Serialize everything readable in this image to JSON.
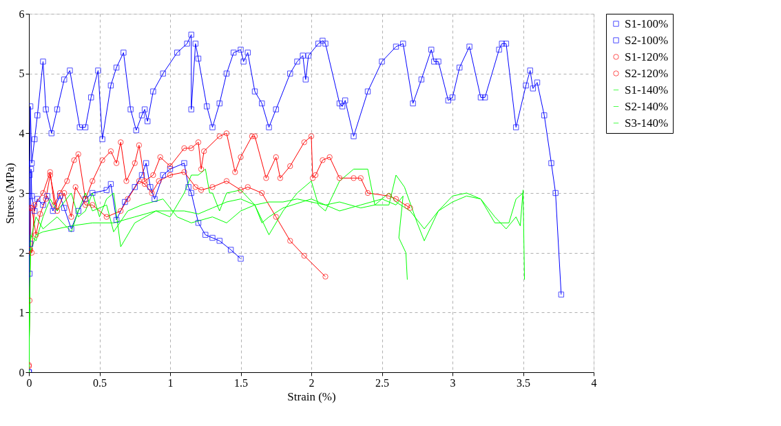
{
  "chart_data": {
    "type": "line",
    "xlabel": "Strain (%)",
    "ylabel": "Stress (MPa)",
    "xlim": [
      0,
      4
    ],
    "ylim": [
      0,
      6
    ],
    "xticks": [
      0,
      0.5,
      1,
      1.5,
      2,
      2.5,
      3,
      3.5,
      4
    ],
    "yticks": [
      0,
      1,
      2,
      3,
      4,
      5,
      6
    ],
    "grid": true,
    "legend": "top right",
    "series": [
      {
        "name": "S1-100%",
        "color": "#0000ff",
        "marker": "square",
        "x": [
          0,
          0.005,
          0.01,
          0.015,
          0.02,
          0.04,
          0.06,
          0.1,
          0.13,
          0.17,
          0.22,
          0.25,
          0.3,
          0.35,
          0.4,
          0.45,
          0.55,
          0.58,
          0.62,
          0.68,
          0.75,
          0.8,
          0.83,
          0.86,
          0.89,
          0.95,
          1.0,
          1.1,
          1.13,
          1.15,
          1.2,
          1.25,
          1.3,
          1.35,
          1.43,
          1.5
        ],
        "values": [
          0,
          1.65,
          2.15,
          3.4,
          2.95,
          2.7,
          2.9,
          2.8,
          2.95,
          2.7,
          2.95,
          2.75,
          2.4,
          2.7,
          2.9,
          3.0,
          3.05,
          3.15,
          2.55,
          2.85,
          3.1,
          3.3,
          3.5,
          3.1,
          2.9,
          3.3,
          3.4,
          3.5,
          3.1,
          3.0,
          2.5,
          2.3,
          2.25,
          2.2,
          2.05,
          1.9
        ]
      },
      {
        "name": "S2-100%",
        "color": "#0000ff",
        "marker": "square",
        "x": [
          0,
          0.005,
          0.01,
          0.02,
          0.04,
          0.06,
          0.1,
          0.12,
          0.16,
          0.2,
          0.25,
          0.29,
          0.36,
          0.4,
          0.44,
          0.49,
          0.52,
          0.58,
          0.62,
          0.67,
          0.72,
          0.76,
          0.8,
          0.82,
          0.84,
          0.88,
          0.95,
          1.05,
          1.12,
          1.15,
          1.15,
          1.18,
          1.2,
          1.26,
          1.3,
          1.35,
          1.4,
          1.45,
          1.5,
          1.52,
          1.55,
          1.6,
          1.65,
          1.7,
          1.75,
          1.85,
          1.9,
          1.94,
          1.96,
          1.98,
          2.05,
          2.08,
          2.1,
          2.2,
          2.22,
          2.24,
          2.3,
          2.4,
          2.5,
          2.6,
          2.65,
          2.72,
          2.78,
          2.85,
          2.87,
          2.9,
          2.97,
          3.0,
          3.05,
          3.12,
          3.2,
          3.23,
          3.33,
          3.35,
          3.38,
          3.45,
          3.52,
          3.55,
          3.57,
          3.6,
          3.65,
          3.7,
          3.73,
          3.77
        ],
        "values": [
          0,
          3.3,
          4.45,
          3.5,
          3.9,
          4.3,
          5.2,
          4.4,
          4.0,
          4.4,
          4.9,
          5.05,
          4.1,
          4.1,
          4.6,
          5.05,
          3.9,
          4.8,
          5.1,
          5.35,
          4.4,
          4.05,
          4.3,
          4.4,
          4.2,
          4.7,
          5.0,
          5.35,
          5.5,
          5.65,
          4.4,
          5.5,
          5.25,
          4.45,
          4.1,
          4.5,
          5.0,
          5.35,
          5.4,
          5.2,
          5.35,
          4.7,
          4.5,
          4.1,
          4.4,
          5.0,
          5.2,
          5.3,
          4.9,
          5.3,
          5.5,
          5.55,
          5.5,
          4.5,
          4.45,
          4.55,
          3.95,
          4.7,
          5.2,
          5.45,
          5.5,
          4.5,
          4.9,
          5.4,
          5.2,
          5.2,
          4.55,
          4.6,
          5.1,
          5.45,
          4.6,
          4.6,
          5.4,
          5.5,
          5.5,
          4.1,
          4.8,
          5.05,
          4.75,
          4.85,
          4.3,
          3.5,
          3.0,
          1.3
        ]
      },
      {
        "name": "S1-120%",
        "color": "#ff0000",
        "marker": "circle",
        "x": [
          0,
          0.005,
          0.01,
          0.02,
          0.05,
          0.08,
          0.12,
          0.15,
          0.2,
          0.25,
          0.3,
          0.33,
          0.4,
          0.45,
          0.55,
          0.65,
          0.7,
          0.78,
          0.82,
          0.87,
          0.92,
          1.0,
          1.1,
          1.18,
          1.22,
          1.3,
          1.4,
          1.5,
          1.55,
          1.65,
          1.75,
          1.85,
          1.95,
          2.1
        ],
        "values": [
          0.12,
          1.2,
          2.75,
          2.75,
          2.3,
          2.65,
          2.9,
          3.3,
          2.7,
          3.0,
          2.6,
          3.1,
          2.8,
          2.8,
          2.6,
          2.7,
          2.9,
          3.2,
          3.15,
          3.0,
          3.2,
          3.3,
          3.35,
          3.1,
          3.05,
          3.1,
          3.2,
          3.05,
          3.1,
          3.0,
          2.6,
          2.2,
          1.95,
          1.6
        ]
      },
      {
        "name": "S2-120%",
        "color": "#ff0000",
        "marker": "circle",
        "x": [
          0,
          0.01,
          0.02,
          0.04,
          0.1,
          0.15,
          0.18,
          0.22,
          0.27,
          0.32,
          0.35,
          0.4,
          0.45,
          0.52,
          0.58,
          0.62,
          0.65,
          0.69,
          0.75,
          0.78,
          0.82,
          0.88,
          0.93,
          1.0,
          1.1,
          1.15,
          1.2,
          1.22,
          1.24,
          1.35,
          1.4,
          1.46,
          1.5,
          1.58,
          1.6,
          1.68,
          1.75,
          1.78,
          1.85,
          1.95,
          2.0,
          2.01,
          2.03,
          2.08,
          2.13,
          2.2,
          2.3,
          2.35,
          2.4,
          2.55,
          2.6,
          2.68,
          2.7
        ],
        "values": [
          0.1,
          2.05,
          2.0,
          2.8,
          3.0,
          3.35,
          2.8,
          3.0,
          3.2,
          3.55,
          3.65,
          2.9,
          3.2,
          3.55,
          3.7,
          3.5,
          3.85,
          3.2,
          3.5,
          3.8,
          3.2,
          3.3,
          3.6,
          3.45,
          3.75,
          3.75,
          3.85,
          3.4,
          3.7,
          3.95,
          4.0,
          3.35,
          3.6,
          3.95,
          3.95,
          3.25,
          3.6,
          3.25,
          3.45,
          3.85,
          3.95,
          3.25,
          3.3,
          3.55,
          3.6,
          3.25,
          3.25,
          3.25,
          3.0,
          2.95,
          2.9,
          2.78,
          2.75
        ]
      },
      {
        "name": "S1-140%",
        "color": "#00ff00",
        "marker": "none",
        "x": [
          0,
          0.01,
          0.05,
          0.1,
          0.2,
          0.3,
          0.35,
          0.4,
          0.45,
          0.55,
          0.6,
          0.7,
          0.8,
          0.95,
          1.05,
          1.15,
          1.3,
          1.4,
          1.5,
          1.6,
          1.65,
          1.7,
          1.8,
          2.0,
          2.1,
          2.2,
          2.35,
          2.5,
          2.6,
          2.65,
          2.62,
          2.67,
          2.68
        ],
        "values": [
          0,
          2.2,
          2.6,
          2.4,
          2.6,
          2.35,
          2.7,
          3.0,
          2.7,
          2.8,
          2.35,
          2.7,
          2.8,
          2.9,
          2.6,
          2.5,
          2.6,
          2.5,
          2.7,
          2.8,
          2.5,
          2.6,
          2.75,
          2.9,
          2.8,
          2.7,
          2.8,
          2.9,
          2.8,
          2.95,
          2.25,
          2.0,
          1.55
        ]
      },
      {
        "name": "S2-140%",
        "color": "#00ff00",
        "marker": "none",
        "x": [
          0,
          0.01,
          0.05,
          0.1,
          0.2,
          0.3,
          0.45,
          0.6,
          0.75,
          0.9,
          1.0,
          1.1,
          1.2,
          1.3,
          1.4,
          1.5,
          1.6,
          1.7,
          1.8,
          1.9,
          2.0,
          2.1,
          2.2,
          2.35,
          2.45,
          2.55,
          2.6,
          2.7,
          2.8,
          2.9,
          3.0,
          3.1,
          3.2,
          3.3,
          3.38,
          3.45,
          3.48,
          3.5,
          3.51
        ],
        "values": [
          0,
          2.0,
          2.3,
          2.35,
          2.4,
          2.45,
          2.5,
          2.5,
          2.6,
          2.7,
          2.7,
          2.7,
          2.65,
          2.75,
          2.85,
          2.9,
          2.8,
          2.85,
          2.85,
          2.9,
          2.85,
          2.8,
          2.85,
          2.75,
          2.8,
          3.0,
          2.85,
          2.7,
          2.4,
          2.7,
          2.85,
          2.95,
          2.9,
          2.6,
          2.4,
          2.6,
          2.45,
          3.05,
          1.55
        ]
      },
      {
        "name": "S3-140%",
        "color": "#00ff00",
        "marker": "none",
        "x": [
          0,
          0.01,
          0.05,
          0.1,
          0.15,
          0.2,
          0.3,
          0.35,
          0.4,
          0.45,
          0.5,
          0.55,
          0.6,
          0.65,
          0.75,
          0.9,
          1.0,
          1.1,
          1.15,
          1.2,
          1.25,
          1.28,
          1.3,
          1.35,
          1.4,
          1.5,
          1.6,
          1.7,
          1.8,
          1.9,
          2.0,
          2.05,
          2.1,
          2.2,
          2.3,
          2.4,
          2.45,
          2.55,
          2.6,
          2.66,
          2.75,
          2.8,
          2.9,
          3.0,
          3.1,
          3.2,
          3.3,
          3.4,
          3.45,
          3.5
        ],
        "values": [
          0,
          2.3,
          2.2,
          2.6,
          2.9,
          2.7,
          3.0,
          2.6,
          2.7,
          3.0,
          2.6,
          2.9,
          3.0,
          2.1,
          2.5,
          2.7,
          2.6,
          3.0,
          3.3,
          3.3,
          3.4,
          3.0,
          3.0,
          2.7,
          3.0,
          3.05,
          2.8,
          2.3,
          2.7,
          3.0,
          3.2,
          2.8,
          2.7,
          3.2,
          3.4,
          3.4,
          2.8,
          2.8,
          3.3,
          3.1,
          2.5,
          2.2,
          2.7,
          2.95,
          3.0,
          2.9,
          2.5,
          2.5,
          2.9,
          3.0
        ]
      }
    ]
  }
}
